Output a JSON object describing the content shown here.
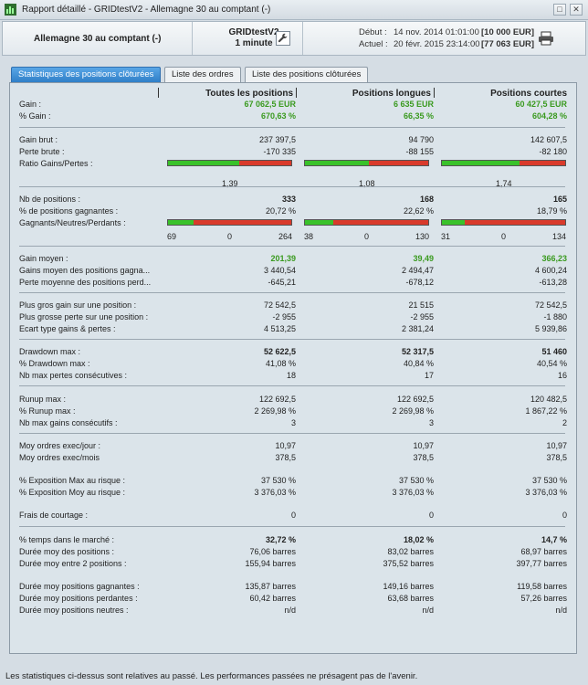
{
  "window": {
    "title": "Rapport détaillé - GRIDtestV2 - Allemagne 30 au comptant (-)"
  },
  "header": {
    "instrument": "Allemagne 30 au comptant (-)",
    "strategy": "GRIDtestV2",
    "timeframe": "1 minute",
    "start_label": "Début :",
    "start_date": "14 nov. 2014 01:01:00",
    "start_capital": "[10 000 EUR]",
    "end_label": "Actuel :",
    "end_date": "20 févr. 2015 23:14:00",
    "end_capital": "[77 063 EUR]"
  },
  "tabs": [
    "Statistiques des positions clôturées",
    "Liste des ordres",
    "Liste des positions clôturées"
  ],
  "columns": [
    "Toutes les positions",
    "Positions longues",
    "Positions courtes"
  ],
  "rows": {
    "gain": {
      "label": "Gain :",
      "v": [
        "67 062,5 EUR",
        "6 635 EUR",
        "60 427,5 EUR"
      ]
    },
    "pct_gain": {
      "label": "% Gain :",
      "v": [
        "670,63 %",
        "66,35 %",
        "604,28 %"
      ]
    },
    "gain_brut": {
      "label": "Gain brut :",
      "v": [
        "237 397,5",
        "94 790",
        "142 607,5"
      ]
    },
    "perte_brute": {
      "label": "Perte brute :",
      "v": [
        "-170 335",
        "-88 155",
        "-82 180"
      ]
    },
    "ratio": {
      "label": "Ratio Gains/Pertes :",
      "v": [
        "1,39",
        "1,08",
        "1,74"
      ]
    },
    "nb_pos": {
      "label": "Nb de positions :",
      "v": [
        "333",
        "168",
        "165"
      ]
    },
    "pct_gagn": {
      "label": "% de positions gagnantes :",
      "v": [
        "20,72 %",
        "22,62 %",
        "18,79 %"
      ]
    },
    "gnp": {
      "label": "Gagnants/Neutres/Perdants :",
      "g": [
        "69",
        "38",
        "31"
      ],
      "n": [
        "0",
        "0",
        "0"
      ],
      "p": [
        "264",
        "130",
        "134"
      ]
    },
    "gain_moyen": {
      "label": "Gain moyen :",
      "v": [
        "201,39",
        "39,49",
        "366,23"
      ]
    },
    "gains_moy_gagn": {
      "label": "Gains moyen des positions gagna...",
      "v": [
        "3 440,54",
        "2 494,47",
        "4 600,24"
      ]
    },
    "perte_moy_perd": {
      "label": "Perte moyenne des positions perd...",
      "v": [
        "-645,21",
        "-678,12",
        "-613,28"
      ]
    },
    "plus_gros_gain": {
      "label": "Plus gros gain sur une position :",
      "v": [
        "72 542,5",
        "21 515",
        "72 542,5"
      ]
    },
    "plus_grosse_perte": {
      "label": "Plus grosse perte sur une position :",
      "v": [
        "-2 955",
        "-2 955",
        "-1 880"
      ]
    },
    "ecart_type": {
      "label": "Ecart type gains & pertes :",
      "v": [
        "4 513,25",
        "2 381,24",
        "5 939,86"
      ]
    },
    "drawdown": {
      "label": "Drawdown max :",
      "v": [
        "52 622,5",
        "52 317,5",
        "51 460"
      ]
    },
    "pct_drawdown": {
      "label": "% Drawdown max :",
      "v": [
        "41,08 %",
        "40,84 %",
        "40,54 %"
      ]
    },
    "nb_max_pertes": {
      "label": "Nb max pertes consécutives :",
      "v": [
        "18",
        "17",
        "16"
      ]
    },
    "runup": {
      "label": "Runup max :",
      "v": [
        "122 692,5",
        "122 692,5",
        "120 482,5"
      ]
    },
    "pct_runup": {
      "label": "% Runup max :",
      "v": [
        "2 269,98 %",
        "2 269,98 %",
        "1 867,22 %"
      ]
    },
    "nb_max_gains": {
      "label": "Nb max gains consécutifs :",
      "v": [
        "3",
        "3",
        "2"
      ]
    },
    "moy_jour": {
      "label": "Moy ordres exec/jour :",
      "v": [
        "10,97",
        "10,97",
        "10,97"
      ]
    },
    "moy_mois": {
      "label": "Moy ordres exec/mois",
      "v": [
        "378,5",
        "378,5",
        "378,5"
      ]
    },
    "expo_max": {
      "label": "% Exposition Max au risque :",
      "v": [
        "37 530 %",
        "37 530 %",
        "37 530 %"
      ]
    },
    "expo_moy": {
      "label": "% Exposition Moy au risque :",
      "v": [
        "3 376,03 %",
        "3 376,03 %",
        "3 376,03 %"
      ]
    },
    "frais": {
      "label": "Frais de courtage :",
      "v": [
        "0",
        "0",
        "0"
      ]
    },
    "temps_marche": {
      "label": "% temps dans le marché :",
      "v": [
        "32,72 %",
        "18,02 %",
        "14,7 %"
      ]
    },
    "duree_pos": {
      "label": "Durée moy des positions :",
      "v": [
        "76,06 barres",
        "83,02 barres",
        "68,97 barres"
      ]
    },
    "duree_entre": {
      "label": "Durée moy entre 2 positions :",
      "v": [
        "155,94 barres",
        "375,52 barres",
        "397,77 barres"
      ]
    },
    "duree_gagn": {
      "label": "Durée moy positions gagnantes :",
      "v": [
        "135,87 barres",
        "149,16 barres",
        "119,58 barres"
      ]
    },
    "duree_perd": {
      "label": "Durée moy positions perdantes :",
      "v": [
        "60,42 barres",
        "63,68 barres",
        "57,26 barres"
      ]
    },
    "duree_neutres": {
      "label": "Durée moy positions neutres :",
      "v": [
        "n/d",
        "n/d",
        "n/d"
      ]
    }
  },
  "bars": {
    "ratio_fraction": [
      0.58,
      0.52,
      0.63
    ],
    "gnp_fraction": [
      0.207,
      0.226,
      0.188
    ]
  },
  "colors": {
    "positive": "#3a9a1f",
    "bar_green": "#39c22a",
    "bar_red": "#d93a2b",
    "tab_active": "#3a8bd6"
  },
  "footer": "Les statistiques ci-dessus sont relatives au passé. Les performances passées ne présagent pas de l'avenir."
}
